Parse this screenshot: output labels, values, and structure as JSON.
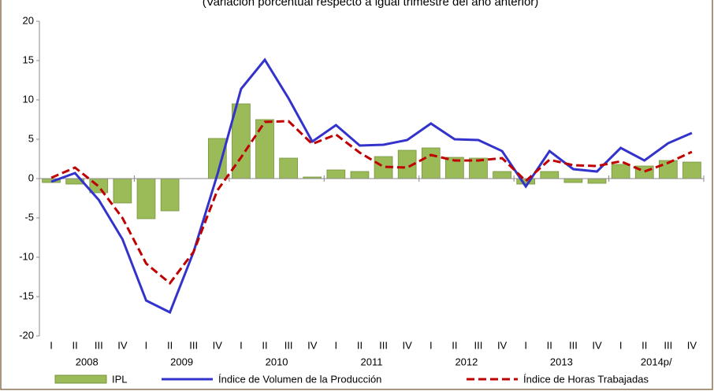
{
  "chart_data": {
    "type": "bar-line",
    "subtitle": "(Variación porcentual respecto a igual trimestre del año anterior)",
    "categories": [
      "I",
      "II",
      "III",
      "IV",
      "I",
      "II",
      "III",
      "IV",
      "I",
      "II",
      "III",
      "IV",
      "I",
      "II",
      "III",
      "IV",
      "I",
      "II",
      "III",
      "IV",
      "I",
      "II",
      "III",
      "IV",
      "I",
      "II",
      "III",
      "IV"
    ],
    "years": [
      "2008",
      "2009",
      "2010",
      "2011",
      "2012",
      "2013",
      "2014p/"
    ],
    "ylim": [
      -20,
      20
    ],
    "yticks": [
      -20,
      -15,
      -10,
      -5,
      0,
      5,
      10,
      15,
      20
    ],
    "series": [
      {
        "name": "IPL",
        "kind": "bar",
        "color": "#9bbb59",
        "values": [
          -0.5,
          -0.7,
          -1.8,
          -3.1,
          -5.1,
          -4.1,
          0,
          5.1,
          9.5,
          7.5,
          2.6,
          0.2,
          1.1,
          0.9,
          2.8,
          3.6,
          3.9,
          2.7,
          2.6,
          0.9,
          -0.7,
          0.9,
          -0.5,
          -0.6,
          1.8,
          1.6,
          2.3,
          2.1
        ]
      },
      {
        "name": "Índice de Volumen de la Producción",
        "kind": "line",
        "color": "#3333cc",
        "values": [
          -0.4,
          0.7,
          -2.7,
          -7.7,
          -15.5,
          -17.0,
          -9.3,
          0.5,
          11.4,
          15.1,
          10.2,
          4.7,
          6.8,
          4.2,
          4.3,
          4.9,
          7.0,
          5.0,
          4.9,
          3.5,
          -1.0,
          3.5,
          1.2,
          0.9,
          3.9,
          2.3,
          4.5,
          5.8
        ]
      },
      {
        "name": "Índice de Horas Trabajadas",
        "kind": "dashed-line",
        "color": "#c00000",
        "values": [
          0.1,
          1.4,
          -1.0,
          -5.0,
          -10.8,
          -13.3,
          -9.3,
          -1.5,
          2.7,
          7.2,
          7.3,
          4.4,
          5.6,
          3.3,
          1.5,
          1.4,
          3.0,
          2.3,
          2.3,
          2.6,
          -0.3,
          2.4,
          1.7,
          1.6,
          2.2,
          0.9,
          2.0,
          3.4
        ]
      }
    ]
  }
}
